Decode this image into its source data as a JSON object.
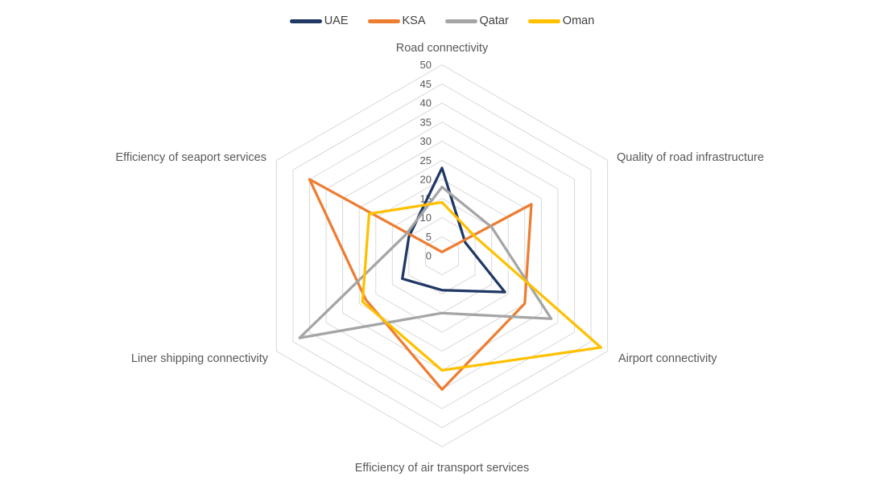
{
  "chart_data": {
    "type": "radar",
    "title": "",
    "categories": [
      "Road connectivity",
      "Quality of road infrastructure",
      "Airport connectivity",
      "Efficiency of air transport services",
      "Liner shipping connectivity",
      "Efficiency of seaport services"
    ],
    "series": [
      {
        "name": "UAE",
        "color": "#1F3864",
        "values": [
          23,
          7,
          19,
          9,
          12,
          10
        ]
      },
      {
        "name": "KSA",
        "color": "#ED7D31",
        "values": [
          1,
          27,
          25,
          35,
          23,
          40
        ]
      },
      {
        "name": "Qatar",
        "color": "#A5A5A5",
        "values": [
          18,
          15,
          33,
          15,
          43,
          11
        ]
      },
      {
        "name": "Oman",
        "color": "#FFC000",
        "values": [
          14,
          10,
          48,
          30,
          24,
          22
        ]
      }
    ],
    "radial_axis": {
      "min": 0,
      "max": 50,
      "step": 5,
      "tick_labels": [
        "0",
        "5",
        "10",
        "15",
        "20",
        "25",
        "30",
        "35",
        "40",
        "45",
        "50"
      ]
    },
    "legend_position": "top",
    "grid": "concentric-hexagons",
    "grid_color": "#D9D9D9",
    "background_color": "#FFFFFF"
  }
}
